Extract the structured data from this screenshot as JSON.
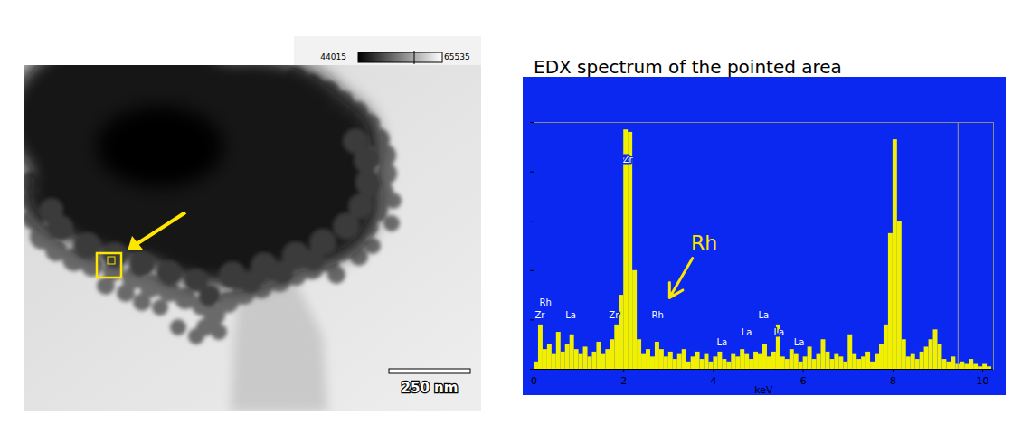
{
  "chart_data": {
    "type": "histogram",
    "title": "EDX spectrum of the pointed area",
    "x_label": "keV",
    "bins": [
      0,
      0.1,
      0.2,
      0.3,
      0.4,
      0.5,
      0.6,
      0.7,
      0.8,
      0.9,
      1.0,
      1.1,
      1.2,
      1.3,
      1.4,
      1.5,
      1.6,
      1.7,
      1.8,
      1.9,
      2.0,
      2.1,
      2.2,
      2.3,
      2.4,
      2.5,
      2.6,
      2.7,
      2.8,
      2.9,
      3.0,
      3.1,
      3.2,
      3.3,
      3.4,
      3.5,
      3.6,
      3.7,
      3.8,
      3.9,
      4.0,
      4.1,
      4.2,
      4.3,
      4.4,
      4.5,
      4.6,
      4.7,
      4.8,
      4.9,
      5.0,
      5.1,
      5.2,
      5.3,
      5.4,
      5.5,
      5.6,
      5.7,
      5.8,
      5.9,
      6.0,
      6.1,
      6.2,
      6.3,
      6.4,
      6.5,
      6.6,
      6.7,
      6.8,
      6.9,
      7.0,
      7.1,
      7.2,
      7.3,
      7.4,
      7.5,
      7.6,
      7.7,
      7.8,
      7.9,
      8.0,
      8.1,
      8.2,
      8.3,
      8.4,
      8.5,
      8.6,
      8.7,
      8.8,
      8.9,
      9.0,
      9.1,
      9.2,
      9.3,
      9.4,
      9.5,
      9.6,
      9.7,
      9.8,
      9.9,
      10.0,
      10.1,
      10.2
    ],
    "counts": [
      3,
      18,
      8,
      10,
      6,
      15,
      7,
      10,
      14,
      8,
      6,
      9,
      5,
      7,
      11,
      6,
      8,
      12,
      18,
      30,
      97,
      96,
      40,
      12,
      6,
      8,
      5,
      11,
      8,
      5,
      7,
      4,
      6,
      8,
      3,
      5,
      7,
      4,
      6,
      3,
      5,
      7,
      4,
      3,
      6,
      5,
      8,
      6,
      4,
      7,
      6,
      10,
      5,
      7,
      18,
      5,
      4,
      8,
      6,
      3,
      5,
      9,
      4,
      6,
      12,
      7,
      4,
      6,
      5,
      3,
      14,
      6,
      4,
      5,
      7,
      3,
      6,
      10,
      18,
      55,
      93,
      60,
      12,
      5,
      6,
      4,
      7,
      9,
      12,
      16,
      10,
      4,
      3,
      5,
      2,
      3,
      2,
      4,
      2,
      1,
      2,
      1
    ],
    "color": "#f0f000",
    "xlim": [
      0,
      10.24
    ],
    "xticks": [
      0,
      2,
      4,
      6,
      8,
      10
    ],
    "ylim": [
      0,
      100
    ],
    "yticks": [
      0,
      20,
      40,
      60,
      80,
      100
    ],
    "tick_labels": "x",
    "peak_labels": [
      {
        "label": "Rh",
        "x": 0.12,
        "y": 27
      },
      {
        "label": "Zr",
        "x": 0.02,
        "y": 22
      },
      {
        "label": "La",
        "x": 0.7,
        "y": 22
      },
      {
        "label": "Zr",
        "x": 1.67,
        "y": 22
      },
      {
        "label": "Zr",
        "x": 1.98,
        "y": 85
      },
      {
        "label": "Rh",
        "x": 2.62,
        "y": 22
      },
      {
        "label": "La",
        "x": 4.07,
        "y": 11
      },
      {
        "label": "La",
        "x": 4.62,
        "y": 15
      },
      {
        "label": "La",
        "x": 5.0,
        "y": 22
      },
      {
        "label": "La",
        "x": 5.34,
        "y": 15
      },
      {
        "label": "La",
        "x": 5.79,
        "y": 11
      }
    ],
    "annotations": [
      {
        "text": "Rh",
        "x": 3.79,
        "y": 51,
        "arrow_x": 3.02,
        "arrow_y": 29
      }
    ],
    "cursor": 9.45
  },
  "micrograph": {
    "colorbar": {
      "min": 44015,
      "max": 65535
    },
    "scale_bar": "250 nm"
  }
}
